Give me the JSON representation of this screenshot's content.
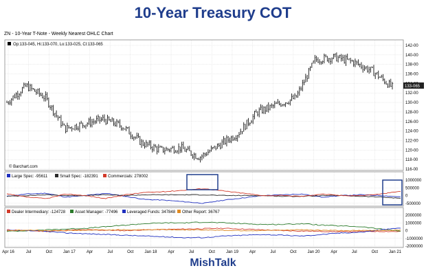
{
  "title": "10-Year Treasury COT",
  "footer": "MishTalk",
  "chart_header": "ZN - 10-Year T-Note - Weekly Nearest OHLC Chart",
  "price_legend": "Op:133-045, Hi:133-070, Lo:133-025, Cl:133-065",
  "last_price_label": "133-065",
  "copyright": "© Barchart.com",
  "colors": {
    "title": "#1f3d8c",
    "large_spec": "#1f2fbf",
    "small_spec": "#2a2a2a",
    "commercials": "#d23a2a",
    "dealer": "#d23a2a",
    "asset_manager": "#2a7a2a",
    "leveraged": "#1f2fbf",
    "other": "#e08a20",
    "highlight_box": "#1f3d8c"
  },
  "chart_data": [
    {
      "type": "candlestick",
      "title": "ZN - 10-Year T-Note - Weekly Nearest OHLC Chart",
      "y_ticks": [
        "142-00",
        "140-00",
        "138-00",
        "136-00",
        "134-00",
        "132-00",
        "130-00",
        "128-00",
        "126-00",
        "124-00",
        "122-00",
        "120-00",
        "118-00",
        "116-00"
      ],
      "ylim": [
        116,
        142
      ],
      "x_ticks": [
        "Apr 16",
        "Jul",
        "Oct",
        "Jan 17",
        "Apr",
        "Jul",
        "Oct",
        "Jan 18",
        "Apr",
        "Jul",
        "Oct",
        "Jan 19",
        "Apr",
        "Jul",
        "Oct",
        "Jan 20",
        "Apr",
        "Jul",
        "Oct",
        "Jan 21"
      ],
      "x": [
        "Apr 16",
        "Jul 16",
        "Oct 16",
        "Jan 17",
        "Apr 17",
        "Jul 17",
        "Oct 17",
        "Jan 18",
        "Apr 18",
        "Jul 18",
        "Oct 18",
        "Jan 19",
        "Apr 19",
        "Jul 19",
        "Oct 19",
        "Jan 20",
        "Apr 20",
        "Jul 20",
        "Oct 20",
        "Jan 21",
        "Mar 21"
      ],
      "close": [
        130.0,
        133.5,
        131.0,
        124.5,
        125.5,
        126.5,
        125.0,
        121.5,
        120.0,
        120.5,
        118.5,
        121.0,
        123.5,
        128.0,
        129.5,
        131.0,
        139.0,
        139.5,
        138.5,
        136.5,
        133.2
      ]
    },
    {
      "type": "line",
      "legend": [
        "Large Spec: -95611",
        "Small Spec: -182391",
        "Commercials: 278002"
      ],
      "y_ticks": [
        "1000000",
        "500000",
        "0",
        "-500000"
      ],
      "ylim": [
        -600000,
        1000000
      ],
      "series": [
        {
          "name": "Large Spec",
          "values": [
            -50000,
            100000,
            150000,
            -100000,
            0,
            150000,
            -50000,
            -250000,
            -300000,
            -400000,
            -500000,
            -300000,
            -150000,
            0,
            50000,
            100000,
            -100000,
            0,
            50000,
            0,
            -95611
          ]
        },
        {
          "name": "Small Spec",
          "values": [
            -50000,
            0,
            50000,
            0,
            0,
            50000,
            0,
            50000,
            50000,
            50000,
            50000,
            0,
            0,
            0,
            -50000,
            -50000,
            0,
            0,
            -50000,
            -100000,
            -182391
          ]
        },
        {
          "name": "Commercials",
          "values": [
            100000,
            -100000,
            -200000,
            100000,
            0,
            -200000,
            50000,
            200000,
            250000,
            350000,
            450000,
            300000,
            150000,
            0,
            0,
            -50000,
            100000,
            0,
            0,
            100000,
            278002
          ]
        }
      ]
    },
    {
      "type": "line",
      "legend": [
        "Dealer Intermediary: -124728",
        "Asset Manager: -77496",
        "Leveraged Funds: 347848",
        "Other Report: 36767"
      ],
      "y_ticks": [
        "2000000",
        "1000000",
        "0",
        "-1000000",
        "-2000000"
      ],
      "ylim": [
        -2000000,
        2000000
      ],
      "series": [
        {
          "name": "Dealer Intermediary",
          "values": [
            100000,
            0,
            -100000,
            50000,
            100000,
            50000,
            0,
            100000,
            150000,
            200000,
            250000,
            300000,
            200000,
            100000,
            0,
            -50000,
            -100000,
            -150000,
            -100000,
            -100000,
            -124728
          ]
        },
        {
          "name": "Asset Manager",
          "values": [
            -100000,
            0,
            100000,
            200000,
            300000,
            500000,
            700000,
            900000,
            1000000,
            1000000,
            1100000,
            1000000,
            900000,
            800000,
            800000,
            900000,
            700000,
            600000,
            500000,
            200000,
            -77496
          ]
        },
        {
          "name": "Leveraged Funds",
          "values": [
            0,
            0,
            -100000,
            -300000,
            -400000,
            -500000,
            -600000,
            -700000,
            -800000,
            -900000,
            -900000,
            -700000,
            -600000,
            -500000,
            -600000,
            -700000,
            -500000,
            -300000,
            -200000,
            100000,
            347848
          ]
        },
        {
          "name": "Other Report",
          "values": [
            0,
            50000,
            0,
            0,
            50000,
            100000,
            100000,
            100000,
            150000,
            100000,
            100000,
            50000,
            0,
            0,
            50000,
            100000,
            50000,
            0,
            0,
            50000,
            36767
          ]
        }
      ]
    }
  ]
}
